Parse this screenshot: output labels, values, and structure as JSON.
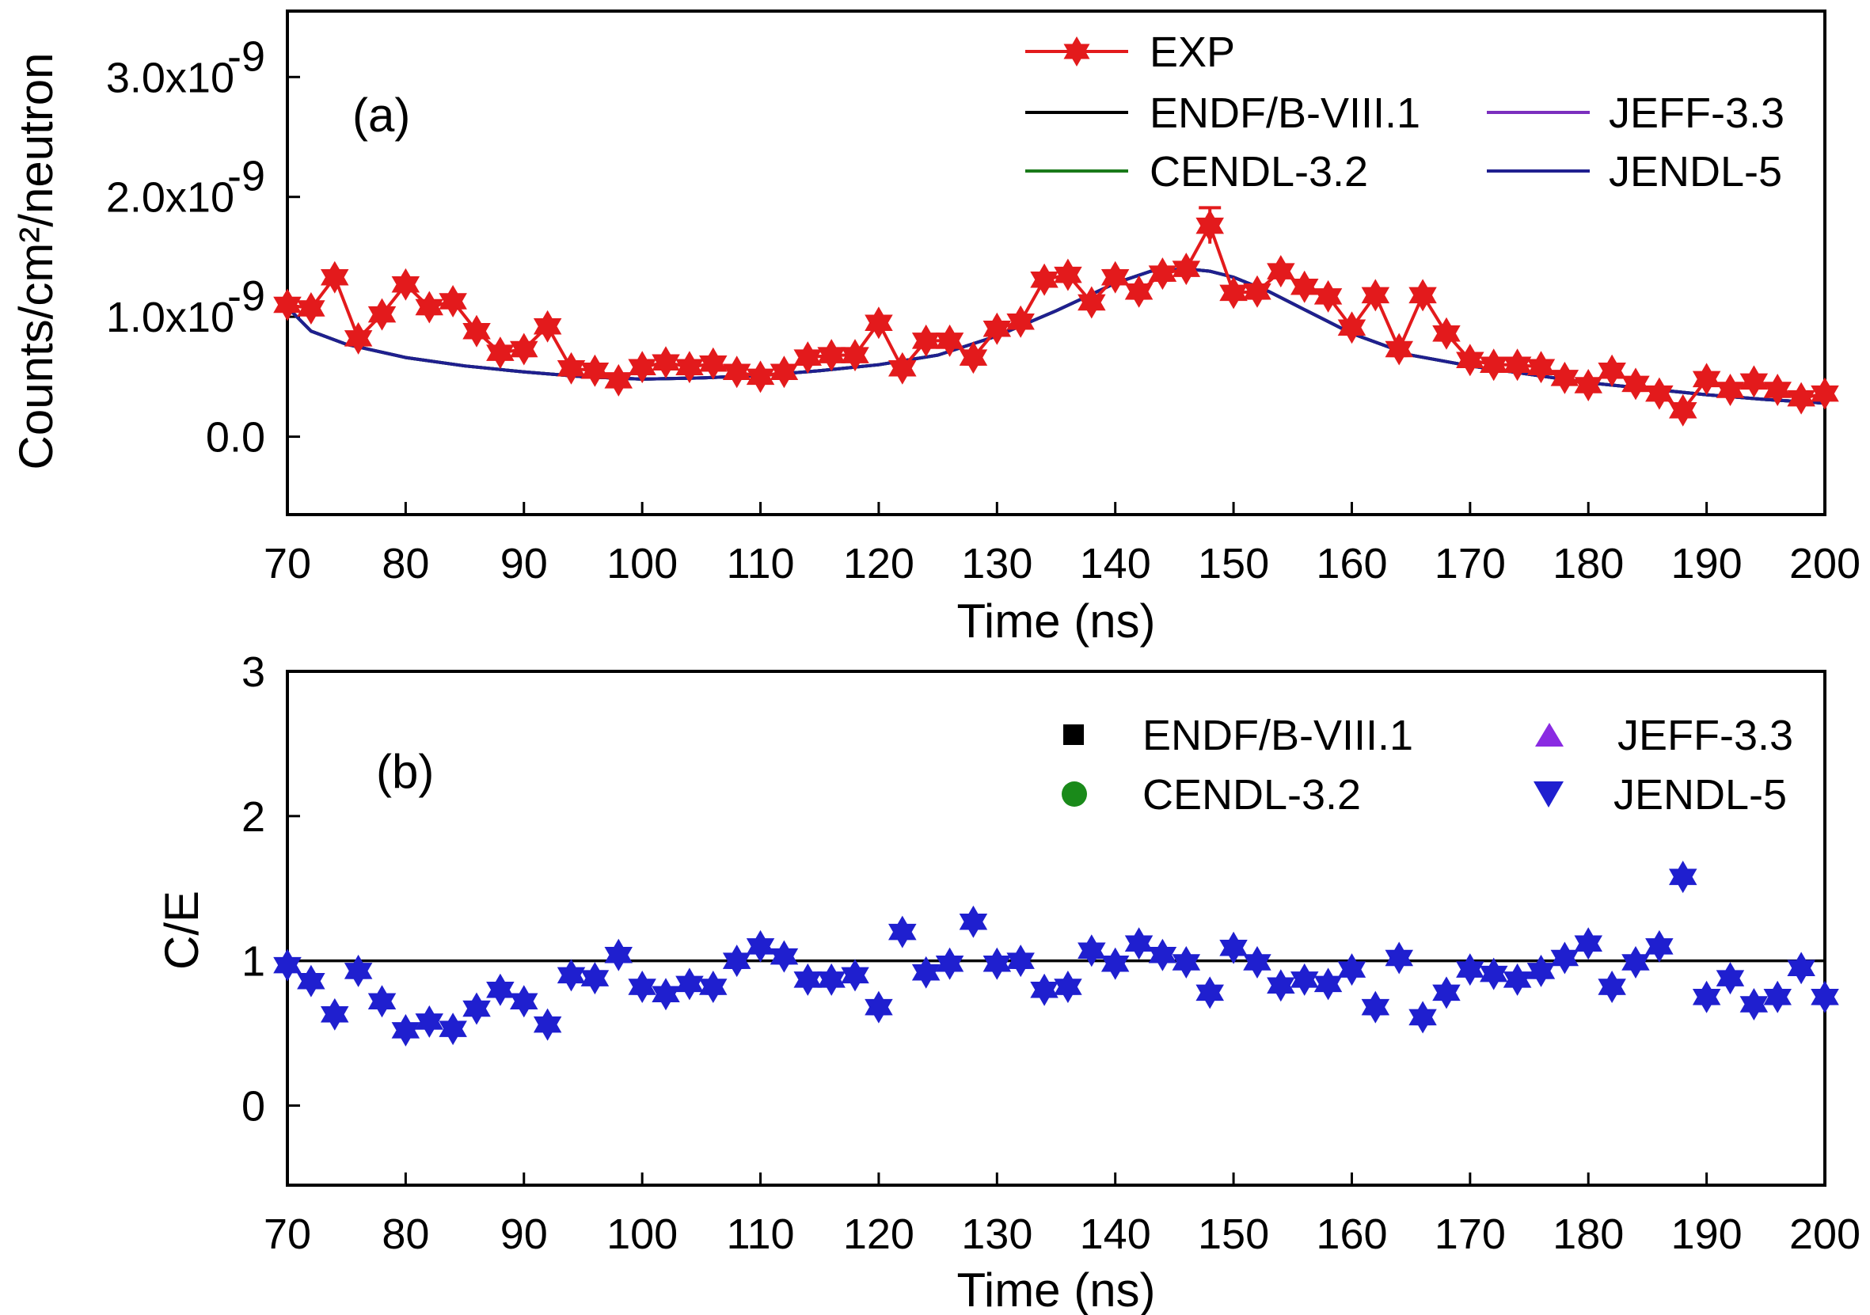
{
  "chart_data": [
    {
      "type": "line",
      "panel_label": "(a)",
      "xlabel": "Time (ns)",
      "ylabel": "Counts/cm²/neutron",
      "xlim": [
        70,
        200
      ],
      "ylim": [
        -0.65,
        3.55
      ],
      "exponent_text": "-9",
      "yticks": [
        0.0,
        1.0,
        2.0,
        3.0
      ],
      "ytick_labels": [
        "0.0",
        "1.0x10",
        "2.0x10",
        "3.0x10"
      ],
      "xticks": [
        70,
        80,
        90,
        100,
        110,
        120,
        130,
        140,
        150,
        160,
        170,
        180,
        190,
        200
      ],
      "legend_position": "top-right",
      "colors": {
        "exp": "#e31a1c",
        "endf": "#000000",
        "jeff": "#7b2fbe",
        "cendl": "#1a7a1a",
        "jendl": "#1f1f8f"
      },
      "series": [
        {
          "name": "EXP",
          "marker": "star",
          "x": [
            70,
            72,
            74,
            76,
            78,
            80,
            82,
            84,
            86,
            88,
            90,
            92,
            94,
            96,
            98,
            100,
            102,
            104,
            106,
            108,
            110,
            112,
            114,
            116,
            118,
            120,
            122,
            124,
            126,
            128,
            130,
            132,
            134,
            136,
            138,
            140,
            142,
            144,
            146,
            148,
            150,
            152,
            154,
            156,
            158,
            160,
            162,
            164,
            166,
            168,
            170,
            172,
            174,
            176,
            178,
            180,
            182,
            184,
            186,
            188,
            190,
            192,
            194,
            196,
            198,
            200
          ],
          "y": [
            1.1,
            1.07,
            1.33,
            0.82,
            1.02,
            1.27,
            1.08,
            1.13,
            0.88,
            0.7,
            0.73,
            0.92,
            0.57,
            0.55,
            0.47,
            0.58,
            0.62,
            0.58,
            0.61,
            0.54,
            0.5,
            0.54,
            0.66,
            0.68,
            0.68,
            0.95,
            0.57,
            0.8,
            0.8,
            0.66,
            0.9,
            0.96,
            1.31,
            1.35,
            1.12,
            1.33,
            1.21,
            1.36,
            1.4,
            1.76,
            1.2,
            1.21,
            1.38,
            1.25,
            1.17,
            0.91,
            1.18,
            0.73,
            1.18,
            0.86,
            0.64,
            0.6,
            0.6,
            0.58,
            0.49,
            0.43,
            0.55,
            0.44,
            0.36,
            0.22,
            0.48,
            0.39,
            0.46,
            0.39,
            0.32,
            0.36
          ],
          "error_at": {
            "x": 148,
            "err": 0.15
          }
        },
        {
          "name": "ENDF/B-VIII.1",
          "x": [
            70,
            72,
            75,
            80,
            85,
            90,
            95,
            100,
            105,
            110,
            115,
            120,
            125,
            130,
            135,
            140,
            143,
            146,
            148,
            150,
            153,
            156,
            160,
            165,
            170,
            175,
            180,
            185,
            190,
            195,
            200
          ],
          "y": [
            1.08,
            0.88,
            0.77,
            0.66,
            0.59,
            0.54,
            0.5,
            0.48,
            0.49,
            0.51,
            0.55,
            0.6,
            0.68,
            0.84,
            1.05,
            1.28,
            1.38,
            1.4,
            1.38,
            1.33,
            1.21,
            1.06,
            0.86,
            0.68,
            0.59,
            0.52,
            0.45,
            0.4,
            0.35,
            0.31,
            0.28
          ]
        },
        {
          "name": "JEFF-3.3",
          "x": [
            70,
            72,
            75,
            80,
            85,
            90,
            95,
            100,
            105,
            110,
            115,
            120,
            125,
            130,
            135,
            140,
            143,
            146,
            148,
            150,
            153,
            156,
            160,
            165,
            170,
            175,
            180,
            185,
            190,
            195,
            200
          ],
          "y": [
            1.08,
            0.88,
            0.77,
            0.66,
            0.59,
            0.54,
            0.5,
            0.48,
            0.49,
            0.51,
            0.55,
            0.6,
            0.68,
            0.84,
            1.05,
            1.28,
            1.38,
            1.4,
            1.38,
            1.33,
            1.21,
            1.06,
            0.86,
            0.68,
            0.59,
            0.52,
            0.45,
            0.4,
            0.35,
            0.31,
            0.28
          ]
        },
        {
          "name": "CENDL-3.2",
          "x": [
            70,
            72,
            75,
            80,
            85,
            90,
            95,
            100,
            105,
            110,
            115,
            120,
            125,
            130,
            135,
            140,
            143,
            146,
            148,
            150,
            153,
            156,
            160,
            165,
            170,
            175,
            180,
            185,
            190,
            195,
            200
          ],
          "y": [
            1.08,
            0.88,
            0.77,
            0.66,
            0.59,
            0.54,
            0.5,
            0.48,
            0.49,
            0.51,
            0.55,
            0.6,
            0.68,
            0.84,
            1.05,
            1.28,
            1.38,
            1.4,
            1.38,
            1.33,
            1.21,
            1.06,
            0.86,
            0.68,
            0.59,
            0.52,
            0.45,
            0.4,
            0.35,
            0.31,
            0.28
          ]
        },
        {
          "name": "JENDL-5",
          "x": [
            70,
            72,
            75,
            80,
            85,
            90,
            95,
            100,
            105,
            110,
            115,
            120,
            125,
            130,
            135,
            140,
            143,
            146,
            148,
            150,
            153,
            156,
            160,
            165,
            170,
            175,
            180,
            185,
            190,
            195,
            200
          ],
          "y": [
            1.08,
            0.88,
            0.77,
            0.66,
            0.59,
            0.54,
            0.5,
            0.48,
            0.49,
            0.51,
            0.55,
            0.6,
            0.68,
            0.84,
            1.05,
            1.28,
            1.38,
            1.4,
            1.38,
            1.33,
            1.21,
            1.06,
            0.86,
            0.68,
            0.59,
            0.52,
            0.45,
            0.4,
            0.35,
            0.31,
            0.28
          ]
        }
      ]
    },
    {
      "type": "scatter",
      "panel_label": "(b)",
      "xlabel": "Time (ns)",
      "ylabel": "C/E",
      "xlim": [
        70,
        200
      ],
      "ylim": [
        -0.55,
        3.0
      ],
      "yticks": [
        0,
        1,
        2,
        3
      ],
      "ytick_labels": [
        "0",
        "1",
        "2",
        "3"
      ],
      "xticks": [
        70,
        80,
        90,
        100,
        110,
        120,
        130,
        140,
        150,
        160,
        170,
        180,
        190,
        200
      ],
      "reference_line": 1,
      "legend_position": "top-right",
      "colors": {
        "endf": "#000000",
        "jeff": "#8a2be2",
        "cendl": "#1a8a1a",
        "jendl": "#1f1fcf"
      },
      "series": [
        {
          "name": "ENDF/B-VIII.1",
          "marker": "square",
          "x": [],
          "y": []
        },
        {
          "name": "JEFF-3.3",
          "marker": "triangle-up",
          "x": [],
          "y": []
        },
        {
          "name": "CENDL-3.2",
          "marker": "circle",
          "x": [],
          "y": []
        },
        {
          "name": "JENDL-5",
          "marker": "triangle-down",
          "x": [
            70,
            72,
            74,
            76,
            78,
            80,
            82,
            84,
            86,
            88,
            90,
            92,
            94,
            96,
            98,
            100,
            102,
            104,
            106,
            108,
            110,
            112,
            114,
            116,
            118,
            120,
            122,
            124,
            126,
            128,
            130,
            132,
            134,
            136,
            138,
            140,
            142,
            144,
            146,
            148,
            150,
            152,
            154,
            156,
            158,
            160,
            162,
            164,
            166,
            168,
            170,
            172,
            174,
            176,
            178,
            180,
            182,
            184,
            186,
            188,
            190,
            192,
            194,
            196,
            198,
            200
          ],
          "y": [
            0.97,
            0.86,
            0.63,
            0.93,
            0.72,
            0.52,
            0.58,
            0.53,
            0.67,
            0.8,
            0.72,
            0.56,
            0.9,
            0.88,
            1.04,
            0.82,
            0.77,
            0.84,
            0.82,
            1.0,
            1.1,
            1.03,
            0.87,
            0.87,
            0.9,
            0.68,
            1.2,
            0.92,
            0.98,
            1.27,
            0.98,
            1.0,
            0.8,
            0.82,
            1.07,
            0.98,
            1.12,
            1.04,
            0.99,
            0.78,
            1.09,
            0.99,
            0.83,
            0.87,
            0.84,
            0.94,
            0.68,
            1.02,
            0.61,
            0.78,
            0.94,
            0.91,
            0.87,
            0.93,
            1.02,
            1.12,
            0.82,
            0.99,
            1.1,
            1.58,
            0.75,
            0.88,
            0.7,
            0.75,
            0.95,
            0.75
          ]
        }
      ]
    }
  ]
}
